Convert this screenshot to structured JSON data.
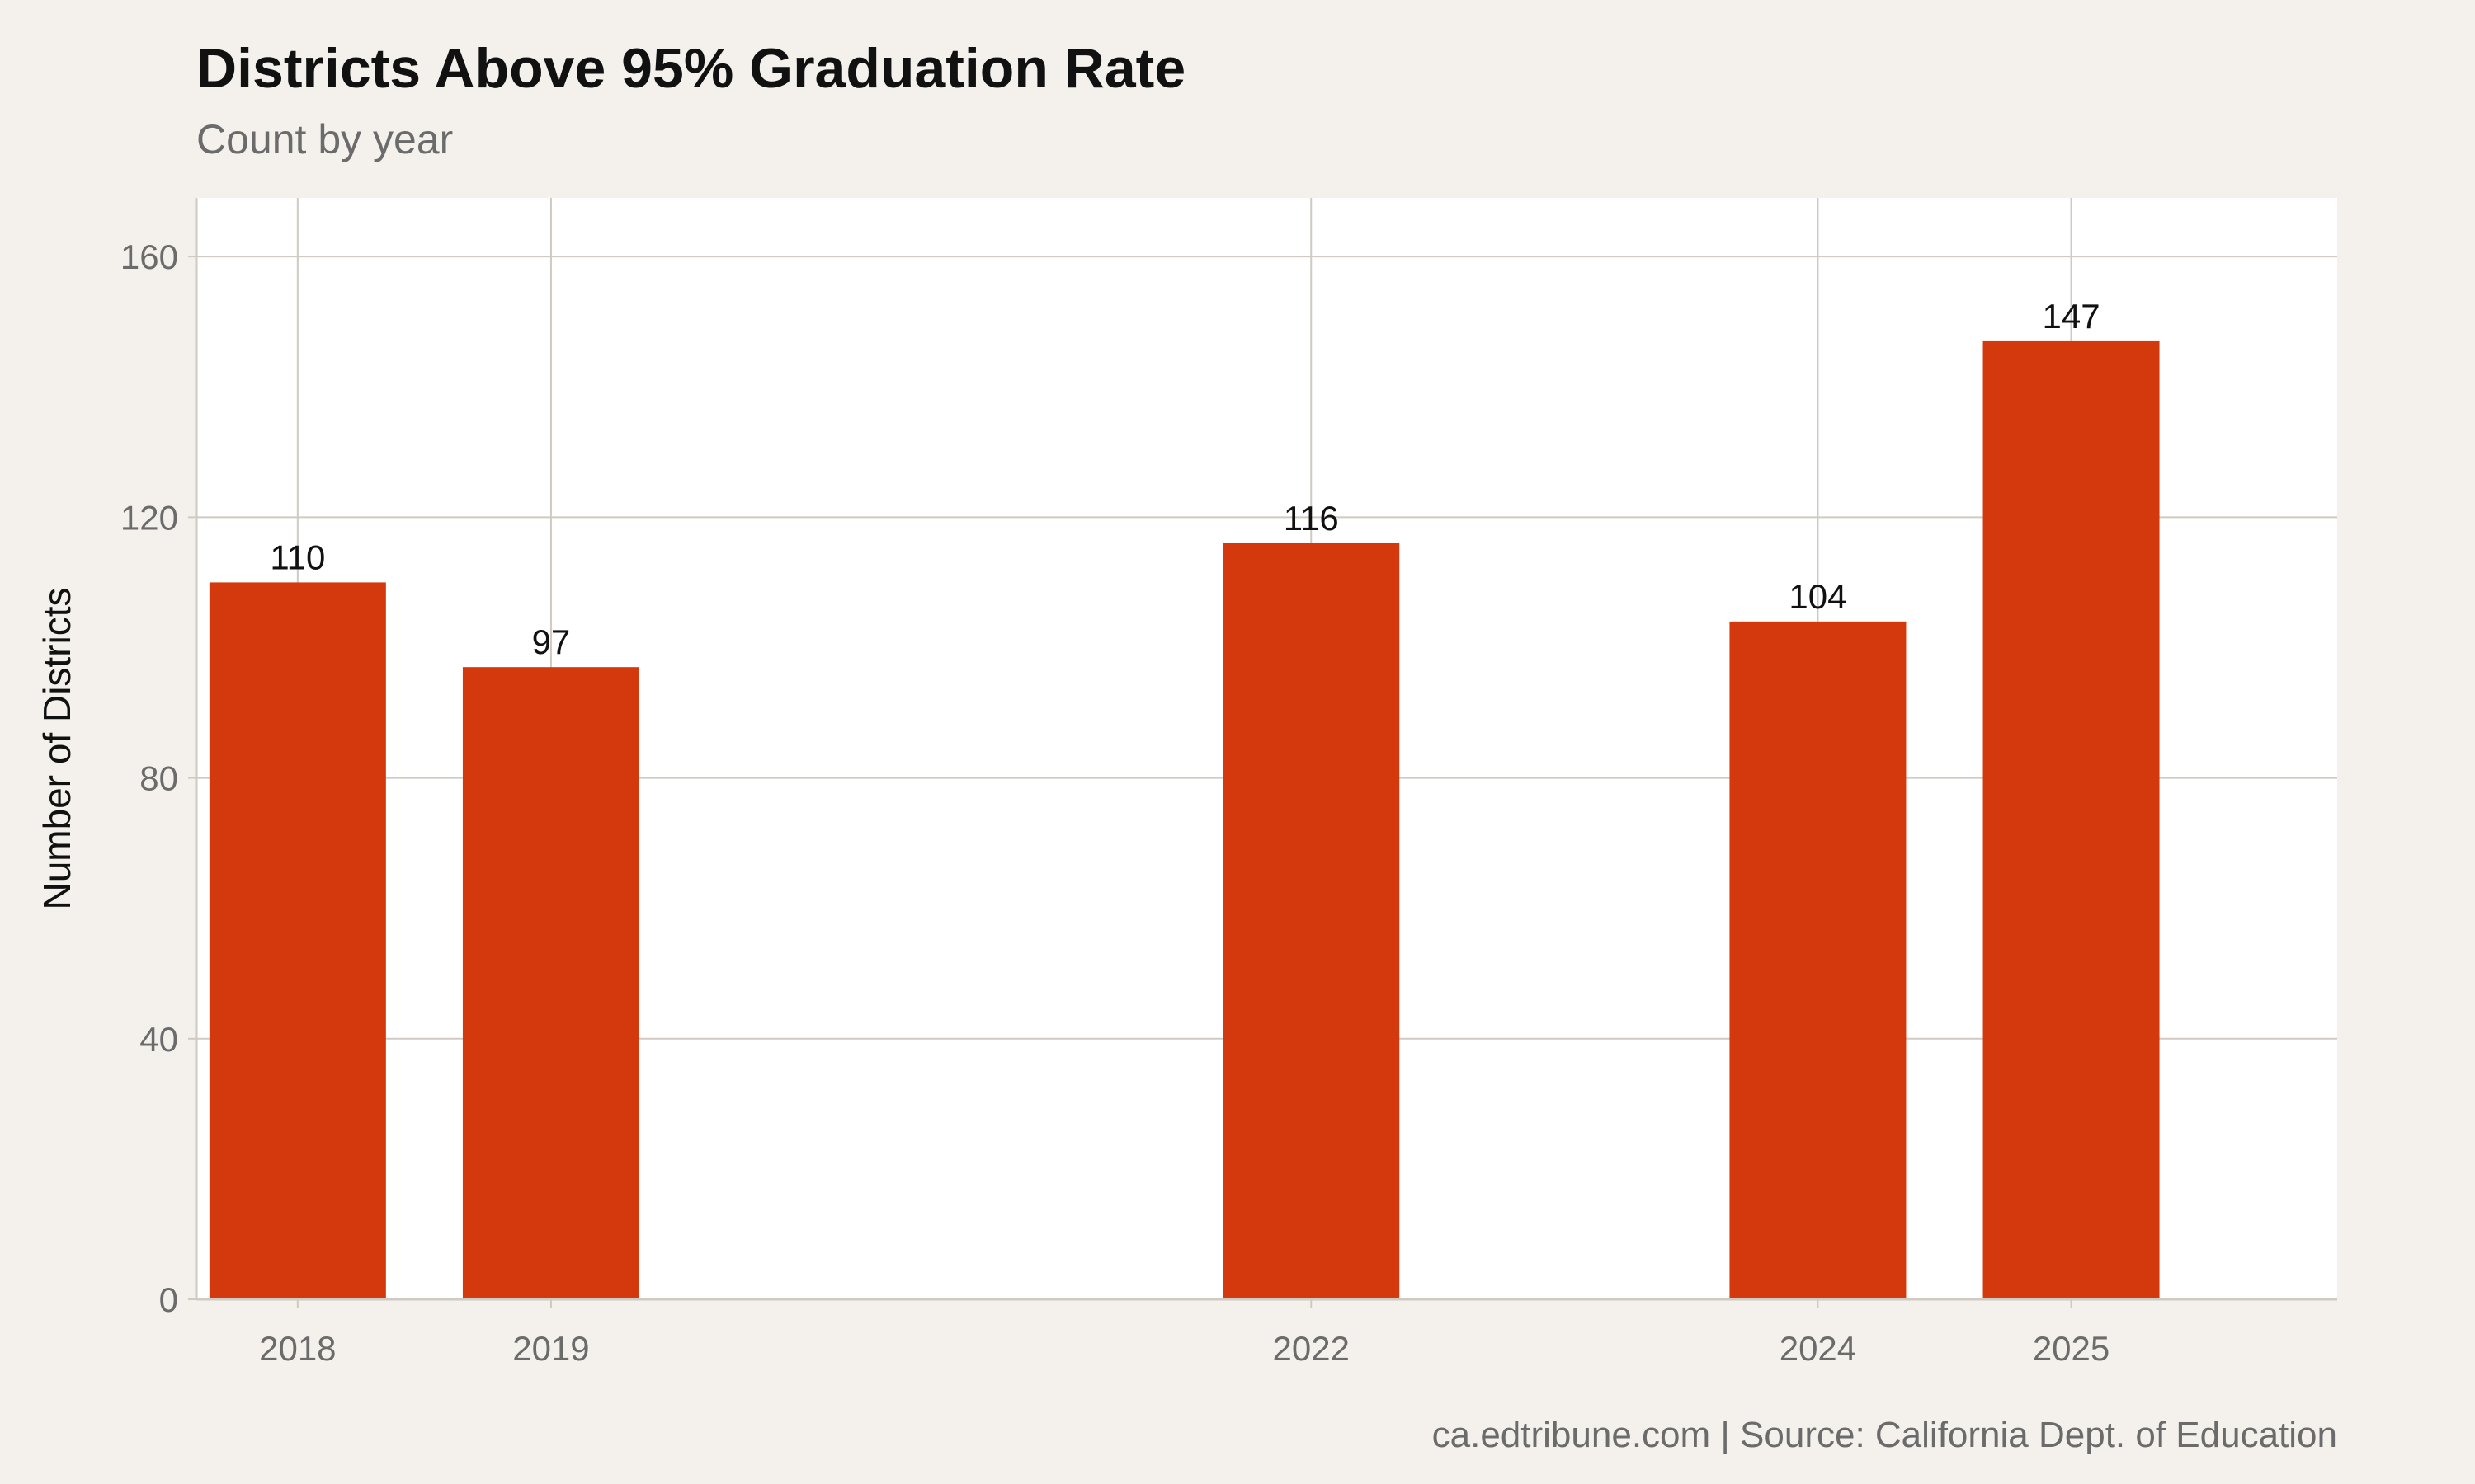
{
  "chart_data": {
    "type": "bar",
    "title": "Districts Above 95% Graduation Rate",
    "subtitle": "Count by year",
    "xlabel": "",
    "ylabel": "Number of Districts",
    "caption": "ca.edtribune.com | Source: California Dept. of Education",
    "x_scale": "continuous-year",
    "xlim": [
      2017.6,
      2026.05
    ],
    "x_ticks": [
      2018,
      2019,
      2022,
      2024,
      2025
    ],
    "categories": [
      "2018",
      "2019",
      "2022",
      "2024",
      "2025"
    ],
    "values": [
      110,
      97,
      116,
      104,
      147
    ],
    "data_labels": [
      "110",
      "97",
      "116",
      "104",
      "147"
    ],
    "ylim": [
      0,
      169
    ],
    "y_ticks": [
      0,
      40,
      80,
      120,
      160
    ],
    "y_tick_labels": [
      "0",
      "40",
      "80",
      "120",
      "160"
    ],
    "grid": true,
    "legend": "none",
    "colors": {
      "bar": "#d4380d",
      "background": "#f4f1ec",
      "panel": "#ffffff",
      "grid": "#cfcac2"
    }
  }
}
